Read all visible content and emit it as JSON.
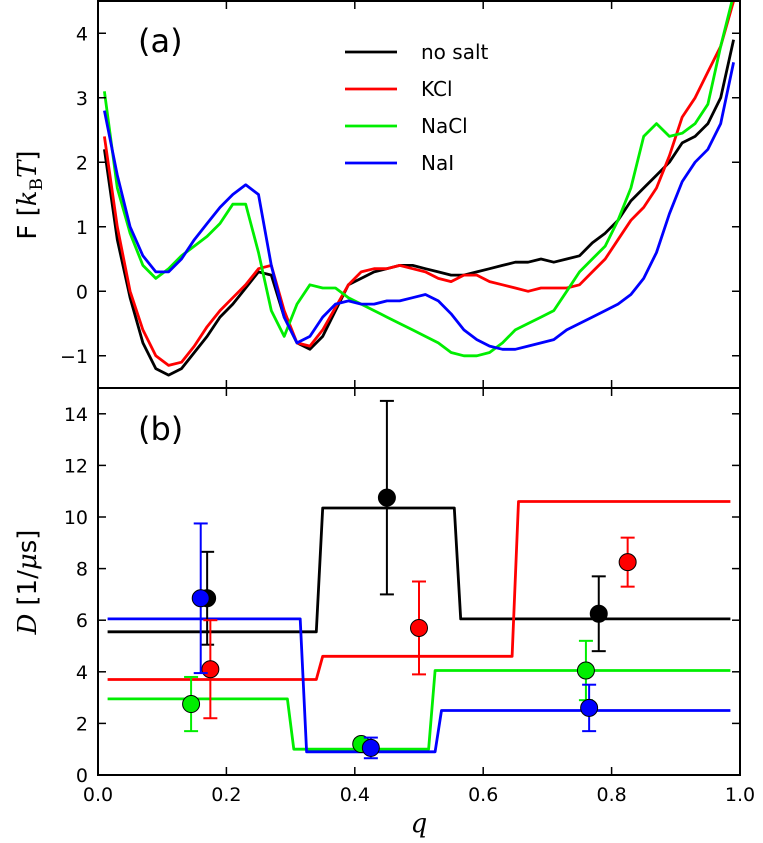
{
  "chart_data": [
    {
      "type": "line",
      "panel_label": "(a)",
      "ylabel": "F [k_BT]",
      "ylabel_parts": {
        "main": "F [",
        "k": "k",
        "sub": "B",
        "T": "T",
        "close": "]"
      },
      "xlim": [
        0.0,
        1.0
      ],
      "ylim": [
        -1.5,
        4.5
      ],
      "yticks": [
        "−1",
        "0",
        "1",
        "2",
        "3",
        "4"
      ],
      "ytick_values": [
        -1,
        0,
        1,
        2,
        3,
        4
      ],
      "legend_position": "top-center",
      "series": [
        {
          "name": "no salt",
          "color": "#000000",
          "x": [
            0.01,
            0.03,
            0.05,
            0.07,
            0.09,
            0.11,
            0.13,
            0.15,
            0.17,
            0.19,
            0.21,
            0.23,
            0.25,
            0.27,
            0.29,
            0.31,
            0.33,
            0.35,
            0.37,
            0.39,
            0.41,
            0.43,
            0.45,
            0.47,
            0.49,
            0.51,
            0.53,
            0.55,
            0.57,
            0.59,
            0.61,
            0.63,
            0.65,
            0.67,
            0.69,
            0.71,
            0.73,
            0.75,
            0.77,
            0.79,
            0.81,
            0.83,
            0.85,
            0.87,
            0.89,
            0.91,
            0.93,
            0.95,
            0.97,
            0.99
          ],
          "y": [
            2.2,
            0.8,
            -0.1,
            -0.8,
            -1.2,
            -1.3,
            -1.2,
            -0.95,
            -0.7,
            -0.4,
            -0.2,
            0.05,
            0.3,
            0.25,
            -0.4,
            -0.8,
            -0.9,
            -0.7,
            -0.3,
            0.1,
            0.2,
            0.3,
            0.35,
            0.4,
            0.4,
            0.35,
            0.3,
            0.25,
            0.25,
            0.3,
            0.35,
            0.4,
            0.45,
            0.45,
            0.5,
            0.45,
            0.5,
            0.55,
            0.75,
            0.9,
            1.1,
            1.4,
            1.6,
            1.8,
            2.0,
            2.3,
            2.4,
            2.6,
            3.0,
            3.9
          ]
        },
        {
          "name": "KCl",
          "color": "#ff0000",
          "x": [
            0.01,
            0.03,
            0.05,
            0.07,
            0.09,
            0.11,
            0.13,
            0.15,
            0.17,
            0.19,
            0.21,
            0.23,
            0.25,
            0.27,
            0.29,
            0.31,
            0.33,
            0.35,
            0.37,
            0.39,
            0.41,
            0.43,
            0.45,
            0.47,
            0.49,
            0.51,
            0.53,
            0.55,
            0.57,
            0.59,
            0.61,
            0.63,
            0.65,
            0.67,
            0.69,
            0.71,
            0.73,
            0.75,
            0.77,
            0.79,
            0.81,
            0.83,
            0.85,
            0.87,
            0.89,
            0.91,
            0.93,
            0.95,
            0.97,
            0.99
          ],
          "y": [
            2.4,
            1.0,
            0.0,
            -0.6,
            -1.0,
            -1.15,
            -1.1,
            -0.85,
            -0.55,
            -0.3,
            -0.1,
            0.1,
            0.35,
            0.4,
            -0.3,
            -0.8,
            -0.85,
            -0.6,
            -0.25,
            0.1,
            0.3,
            0.35,
            0.35,
            0.4,
            0.35,
            0.3,
            0.2,
            0.15,
            0.25,
            0.25,
            0.15,
            0.1,
            0.05,
            0.0,
            0.05,
            0.05,
            0.05,
            0.1,
            0.3,
            0.5,
            0.8,
            1.1,
            1.3,
            1.6,
            2.1,
            2.7,
            3.0,
            3.4,
            3.8,
            4.5
          ]
        },
        {
          "name": "NaCl",
          "color": "#00ee00",
          "x": [
            0.01,
            0.03,
            0.05,
            0.07,
            0.09,
            0.11,
            0.13,
            0.15,
            0.17,
            0.19,
            0.21,
            0.23,
            0.25,
            0.27,
            0.29,
            0.31,
            0.33,
            0.35,
            0.37,
            0.39,
            0.41,
            0.43,
            0.45,
            0.47,
            0.49,
            0.51,
            0.53,
            0.55,
            0.57,
            0.59,
            0.61,
            0.63,
            0.65,
            0.67,
            0.69,
            0.71,
            0.73,
            0.75,
            0.77,
            0.79,
            0.81,
            0.83,
            0.85,
            0.87,
            0.89,
            0.91,
            0.93,
            0.95,
            0.97,
            0.99
          ],
          "y": [
            3.1,
            1.6,
            0.9,
            0.4,
            0.2,
            0.35,
            0.55,
            0.7,
            0.85,
            1.05,
            1.35,
            1.35,
            0.6,
            -0.3,
            -0.7,
            -0.2,
            0.1,
            0.05,
            0.05,
            -0.1,
            -0.2,
            -0.3,
            -0.4,
            -0.5,
            -0.6,
            -0.7,
            -0.8,
            -0.95,
            -1.0,
            -1.0,
            -0.95,
            -0.8,
            -0.6,
            -0.5,
            -0.4,
            -0.3,
            0.0,
            0.3,
            0.5,
            0.7,
            1.1,
            1.6,
            2.4,
            2.6,
            2.4,
            2.45,
            2.6,
            2.9,
            3.8,
            4.6
          ]
        },
        {
          "name": "NaI",
          "color": "#0000ff",
          "x": [
            0.01,
            0.03,
            0.05,
            0.07,
            0.09,
            0.11,
            0.13,
            0.15,
            0.17,
            0.19,
            0.21,
            0.23,
            0.25,
            0.27,
            0.29,
            0.31,
            0.33,
            0.35,
            0.37,
            0.39,
            0.41,
            0.43,
            0.45,
            0.47,
            0.49,
            0.51,
            0.53,
            0.55,
            0.57,
            0.59,
            0.61,
            0.63,
            0.65,
            0.67,
            0.69,
            0.71,
            0.73,
            0.75,
            0.77,
            0.79,
            0.81,
            0.83,
            0.85,
            0.87,
            0.89,
            0.91,
            0.93,
            0.95,
            0.97,
            0.99
          ],
          "y": [
            2.8,
            1.8,
            1.0,
            0.55,
            0.3,
            0.3,
            0.5,
            0.8,
            1.05,
            1.3,
            1.5,
            1.65,
            1.5,
            0.4,
            -0.4,
            -0.8,
            -0.7,
            -0.4,
            -0.2,
            -0.15,
            -0.2,
            -0.2,
            -0.15,
            -0.15,
            -0.1,
            -0.05,
            -0.15,
            -0.35,
            -0.6,
            -0.75,
            -0.85,
            -0.9,
            -0.9,
            -0.85,
            -0.8,
            -0.75,
            -0.6,
            -0.5,
            -0.4,
            -0.3,
            -0.2,
            -0.05,
            0.2,
            0.6,
            1.2,
            1.7,
            2.0,
            2.2,
            2.6,
            3.55
          ]
        }
      ]
    },
    {
      "type": "line",
      "panel_label": "(b)",
      "ylabel": "D [1/μs]",
      "ylabel_parts": {
        "main": "D",
        "bracket": "[1/",
        "mu": "μ",
        "unit": "s]"
      },
      "xlabel": "q",
      "xlim": [
        0.0,
        1.0
      ],
      "ylim": [
        0,
        15
      ],
      "xticks": [
        "0.0",
        "0.2",
        "0.4",
        "0.6",
        "0.8",
        "1.0"
      ],
      "xtick_values": [
        0.0,
        0.2,
        0.4,
        0.6,
        0.8,
        1.0
      ],
      "yticks": [
        "0",
        "2",
        "4",
        "6",
        "8",
        "10",
        "12",
        "14"
      ],
      "ytick_values": [
        0,
        2,
        4,
        6,
        8,
        10,
        12,
        14
      ],
      "series": [
        {
          "name": "no salt",
          "color": "#000000",
          "x": [
            0.015,
            0.34,
            0.35,
            0.555,
            0.565,
            0.985
          ],
          "y": [
            5.55,
            5.55,
            10.35,
            10.35,
            6.05,
            6.05
          ],
          "points": [
            {
              "x": 0.17,
              "y": 6.85,
              "err": 1.8
            },
            {
              "x": 0.45,
              "y": 10.75,
              "err": 3.75
            },
            {
              "x": 0.78,
              "y": 6.25,
              "err": 1.45
            }
          ]
        },
        {
          "name": "KCl",
          "color": "#ff0000",
          "x": [
            0.015,
            0.34,
            0.35,
            0.645,
            0.655,
            0.985
          ],
          "y": [
            3.7,
            3.7,
            4.6,
            4.6,
            10.6,
            10.6
          ],
          "points": [
            {
              "x": 0.175,
              "y": 4.1,
              "err": 1.9
            },
            {
              "x": 0.5,
              "y": 5.7,
              "err": 1.8
            },
            {
              "x": 0.825,
              "y": 8.25,
              "err": 0.95
            }
          ]
        },
        {
          "name": "NaCl",
          "color": "#00ee00",
          "x": [
            0.015,
            0.295,
            0.305,
            0.515,
            0.525,
            0.985
          ],
          "y": [
            2.95,
            2.95,
            1.0,
            1.0,
            4.05,
            4.05
          ],
          "points": [
            {
              "x": 0.145,
              "y": 2.75,
              "err": 1.05
            },
            {
              "x": 0.41,
              "y": 1.2,
              "err": 0.2
            },
            {
              "x": 0.76,
              "y": 4.05,
              "err": 1.15
            }
          ]
        },
        {
          "name": "NaI",
          "color": "#0000ff",
          "x": [
            0.015,
            0.315,
            0.325,
            0.525,
            0.535,
            0.985
          ],
          "y": [
            6.05,
            6.05,
            0.9,
            0.9,
            2.5,
            2.5
          ],
          "points": [
            {
              "x": 0.16,
              "y": 6.85,
              "err": 2.9
            },
            {
              "x": 0.425,
              "y": 1.05,
              "err": 0.4
            },
            {
              "x": 0.765,
              "y": 2.6,
              "err": 0.9
            }
          ]
        }
      ]
    }
  ]
}
